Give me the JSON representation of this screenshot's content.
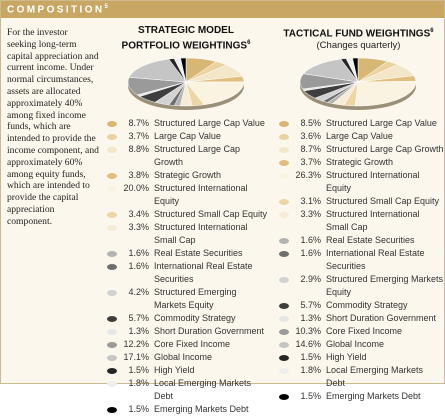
{
  "header": {
    "title": "COMPOSITION",
    "footnote": "5"
  },
  "intro": "For the investor seeking long-term capital appreciation and current income. Under normal circumstances, assets are allocated approximately 40% among fixed income funds, which are intended to provide the income component, and approximately 60% among equity funds, which are intended to provide the capital appreciation component.",
  "chart_data": [
    {
      "type": "pie",
      "title": "STRATEGIC MODEL PORTFOLIO WEIGHTINGS",
      "footnote": "6",
      "categories": [
        "Structured Large Cap Value",
        "Large Cap Value",
        "Structured Large Cap Growth",
        "Strategic Growth",
        "Structured International Equity",
        "Structured Small Cap Equity",
        "Structured International Small Cap",
        "Real Estate Securities",
        "International Real Estate Securities",
        "Structured Emerging Markets Equity",
        "Commodity Strategy",
        "Short Duration Government",
        "Core Fixed Income",
        "Global Income",
        "High Yield",
        "Local Emerging Markets Debt",
        "Emerging Markets Debt"
      ],
      "values": [
        8.7,
        3.7,
        8.8,
        3.8,
        20.0,
        3.4,
        3.3,
        1.6,
        1.6,
        4.2,
        5.7,
        1.3,
        12.2,
        17.1,
        1.5,
        1.8,
        1.5
      ],
      "value_labels": [
        "8.7%",
        "3.7%",
        "8.8%",
        "3.8%",
        "20.0%",
        "3.4%",
        "3.3%",
        "1.6%",
        "1.6%",
        "4.2%",
        "5.7%",
        "1.3%",
        "12.2%",
        "17.1%",
        "1.5%",
        "1.8%",
        "1.5%"
      ],
      "colors": [
        "#d8b674",
        "#ebd3a0",
        "#f4e6c8",
        "#e0bf7c",
        "#fbf3e2",
        "#eed6a4",
        "#f7ecd6",
        "#b3b3b3",
        "#6e6e6e",
        "#d2d2d2",
        "#3e3e3e",
        "#e6e6e6",
        "#9a9a9a",
        "#c5c5c5",
        "#262626",
        "#eeeeee",
        "#000000"
      ]
    },
    {
      "type": "pie",
      "title": "TACTICAL FUND WEIGHTINGS",
      "footnote": "6",
      "subtitle": "(Changes quarterly)",
      "categories": [
        "Structured Large Cap Value",
        "Large Cap Value",
        "Structured Large Cap Growth",
        "Strategic Growth",
        "Structured International Equity",
        "Structured Small Cap Equity",
        "Structured International Small Cap",
        "Real Estate Securities",
        "International Real Estate Securities",
        "Structured Emerging Markets Equity",
        "Commodity Strategy",
        "Short Duration Government",
        "Core Fixed Income",
        "Global Income",
        "High Yield",
        "Local Emerging Markets Debt",
        "Emerging Markets Debt"
      ],
      "values": [
        8.5,
        3.6,
        8.7,
        3.7,
        26.3,
        3.1,
        3.3,
        1.6,
        1.6,
        2.9,
        5.7,
        1.3,
        10.3,
        14.6,
        1.5,
        1.8,
        1.5
      ],
      "value_labels": [
        "8.5%",
        "3.6%",
        "8.7%",
        "3.7%",
        "26.3%",
        "3.1%",
        "3.3%",
        "1.6%",
        "1.6%",
        "2.9%",
        "5.7%",
        "1.3%",
        "10.3%",
        "14.6%",
        "1.5%",
        "1.8%",
        "1.5%"
      ],
      "colors": [
        "#d8b674",
        "#ebd3a0",
        "#f4e6c8",
        "#e0bf7c",
        "#fbf3e2",
        "#eed6a4",
        "#f7ecd6",
        "#b3b3b3",
        "#6e6e6e",
        "#d2d2d2",
        "#3e3e3e",
        "#e6e6e6",
        "#9a9a9a",
        "#c5c5c5",
        "#262626",
        "#eeeeee",
        "#000000"
      ]
    }
  ]
}
